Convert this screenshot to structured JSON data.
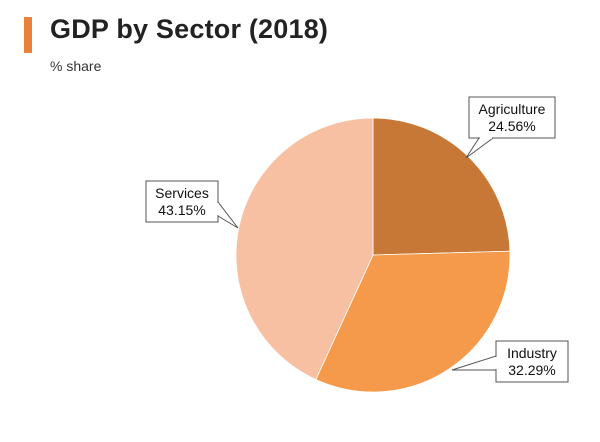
{
  "header": {
    "title": "GDP by Sector (2018)",
    "subtitle": "% share"
  },
  "colors": {
    "accent": "#e8823a",
    "agriculture": "#c87836",
    "industry": "#f59a4b",
    "services": "#f8c0a2"
  },
  "chart_data": {
    "type": "pie",
    "title": "GDP by Sector (2018)",
    "subtitle": "% share",
    "unit": "%",
    "slices": [
      {
        "name": "Agriculture",
        "value": 24.56,
        "label": "24.56%",
        "color": "#c87836"
      },
      {
        "name": "Industry",
        "value": 32.29,
        "label": "32.29%",
        "color": "#f59a4b"
      },
      {
        "name": "Services",
        "value": 43.15,
        "label": "43.15%",
        "color": "#f8c0a2"
      }
    ],
    "start": "12 o'clock, clockwise",
    "legend": "none; callout labels beside slices"
  }
}
